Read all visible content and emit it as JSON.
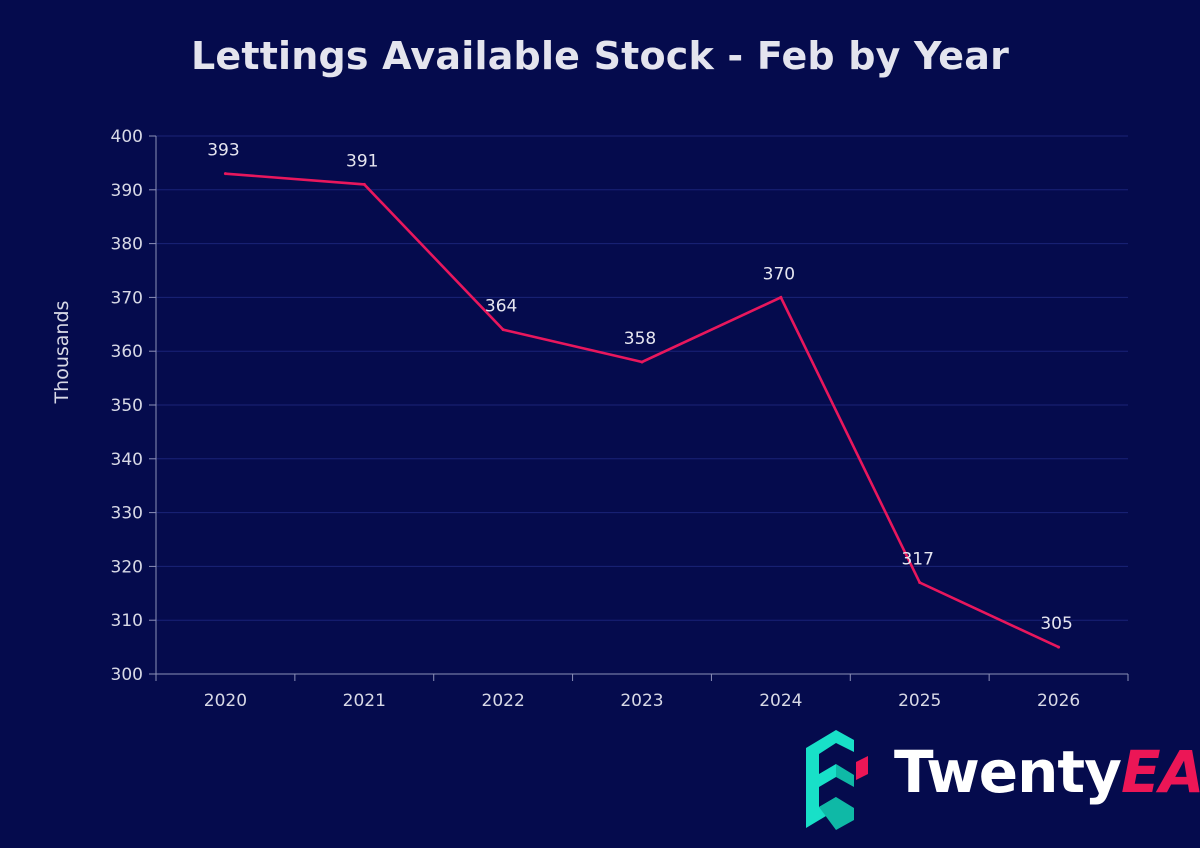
{
  "chart_data": {
    "type": "line",
    "title": "Lettings Available Stock - Feb by Year",
    "xlabel": "",
    "ylabel": "Thousands",
    "categories": [
      "2020",
      "2021",
      "2022",
      "2023",
      "2024",
      "2025",
      "2026"
    ],
    "series": [
      {
        "name": "Lettings Available Stock",
        "values": [
          393,
          391,
          364,
          358,
          370,
          317,
          305
        ],
        "labels": [
          "393",
          "391",
          "364",
          "358",
          "370",
          "317",
          "305"
        ],
        "color": "#e8175d"
      }
    ],
    "ylim": [
      300,
      400
    ],
    "yticks": [
      "300",
      "310",
      "320",
      "330",
      "340",
      "350",
      "360",
      "370",
      "380",
      "390",
      "400"
    ],
    "grid": true,
    "legend": "none"
  },
  "brand": {
    "name_main": "Twenty",
    "name_accent": "EA",
    "colors": {
      "background": "#050b4d",
      "accent": "#ec1656",
      "icon": "#18e0c8",
      "grid": "#1a2378",
      "axis": "#8c90b8"
    }
  }
}
